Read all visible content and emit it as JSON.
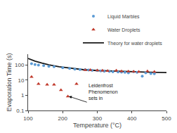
{
  "chart_data": {
    "type": "scatter",
    "xlabel": "Temperature (°C)",
    "ylabel": "Evaporation Time (s)",
    "series": [
      {
        "name": "Liquid Marbles",
        "color": "#5B9BD5",
        "marker": "circle",
        "x": [
          110,
          120,
          130,
          145,
          160,
          175,
          200,
          220,
          235,
          250,
          265,
          275,
          285,
          300,
          310,
          320,
          335,
          345,
          360,
          370,
          380,
          390,
          405,
          415,
          430,
          440,
          455,
          465
        ],
        "values": [
          120,
          105,
          95,
          88,
          80,
          75,
          65,
          58,
          52,
          50,
          48,
          45,
          43,
          42,
          40,
          38,
          37,
          35,
          34,
          33,
          32,
          30,
          35,
          32,
          18,
          30,
          27,
          26
        ]
      },
      {
        "name": "Water Droplets",
        "color": "#C0392B",
        "marker": "triangle",
        "x": [
          110,
          130,
          155,
          175,
          195,
          215,
          240,
          265,
          280,
          300,
          315,
          330,
          355,
          370,
          390,
          405,
          420,
          445,
          465
        ],
        "values": [
          16,
          5.5,
          5,
          5,
          2.2,
          0.85,
          5.5,
          45,
          45,
          43,
          42,
          40,
          42,
          38,
          37,
          36,
          35,
          38,
          35
        ]
      },
      {
        "name": "Theory for water droplets",
        "color": "#1a1a1a",
        "type": "line",
        "line_style": "solid",
        "x": [
          100,
          120,
          140,
          160,
          190,
          220,
          260,
          300,
          350,
          400,
          450,
          500
        ],
        "values": [
          260,
          175,
          130,
          100,
          75,
          60,
          48,
          42,
          38,
          35,
          33,
          31
        ]
      }
    ],
    "xlim": [
      100,
      500
    ],
    "xticks": [
      100,
      200,
      300,
      400,
      500
    ],
    "ylim": [
      0.1,
      500
    ],
    "yticks": [
      0.1,
      1,
      10,
      100
    ],
    "log": "y",
    "grid": false,
    "legend": "upper right",
    "annotations": [
      {
        "text": "Leidenfrost\nPhenomenon\nsets in",
        "xy": [
          218,
          0.85
        ],
        "text_xy": [
          270,
          0.35
        ]
      }
    ]
  }
}
